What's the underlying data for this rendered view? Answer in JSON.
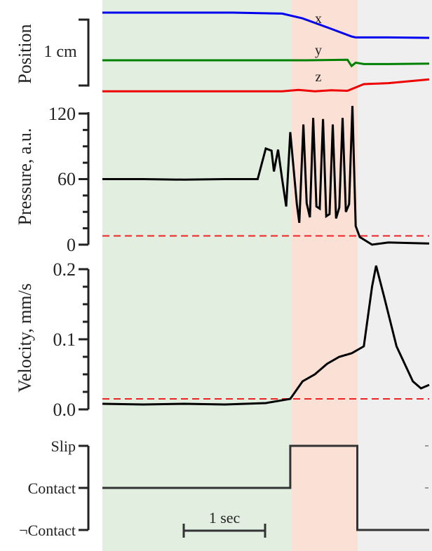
{
  "chart_data": [
    {
      "type": "line",
      "panel": "position",
      "ylabel": "Position",
      "scale_bar": "1 cm",
      "colors": {
        "x": "#0000ee",
        "y": "#008000",
        "z": "#ee0000"
      },
      "series": [
        {
          "name": "x",
          "x": [
            0,
            1.6,
            2.2,
            2.45,
            2.8,
            3.05,
            3.1,
            3.5,
            4.0
          ],
          "values": [
            1.0,
            1.0,
            0.98,
            0.88,
            0.66,
            0.5,
            0.48,
            0.48,
            0.47
          ]
        },
        {
          "name": "y",
          "x": [
            0,
            2.0,
            2.5,
            3.0,
            3.05,
            3.1,
            3.2,
            3.5,
            4.0
          ],
          "values": [
            0.0,
            0.0,
            0.0,
            0.01,
            -0.12,
            -0.05,
            -0.08,
            -0.08,
            -0.07
          ]
        },
        {
          "name": "z",
          "x": [
            0,
            2.2,
            2.4,
            2.6,
            2.8,
            3.0,
            3.2,
            3.5,
            4.0
          ],
          "values": [
            -0.65,
            -0.65,
            -0.62,
            -0.65,
            -0.63,
            -0.64,
            -0.5,
            -0.48,
            -0.4
          ]
        }
      ]
    },
    {
      "type": "line",
      "panel": "pressure",
      "ylabel": "Pressure, a.u.",
      "yticks": [
        "0",
        "60",
        "120"
      ],
      "ylim": [
        0,
        120
      ],
      "threshold": 8,
      "series": [
        {
          "name": "",
          "x": [
            0,
            0.5,
            1.0,
            1.5,
            1.9,
            2.0,
            2.07,
            2.1,
            2.15,
            2.2,
            2.25,
            2.3,
            2.38,
            2.41,
            2.46,
            2.5,
            2.54,
            2.58,
            2.62,
            2.66,
            2.7,
            2.74,
            2.78,
            2.82,
            2.86,
            2.9,
            2.94,
            2.98,
            3.02,
            3.06,
            3.1,
            3.15,
            3.3,
            3.5,
            4.0
          ],
          "values": [
            60,
            60,
            59.5,
            60,
            60,
            88,
            86,
            67,
            87,
            60,
            35,
            103,
            37,
            20,
            110,
            38,
            25,
            116,
            35,
            33,
            115,
            26,
            28,
            110,
            24,
            34,
            116,
            30,
            37,
            127,
            17,
            7,
            0,
            2,
            1
          ]
        }
      ]
    },
    {
      "type": "line",
      "panel": "velocity",
      "ylabel": "Velocity, mm/s",
      "yticks": [
        "0.0",
        "0.1",
        "0.2"
      ],
      "ylim": [
        0,
        0.2
      ],
      "threshold": 0.015,
      "series": [
        {
          "name": "",
          "x": [
            0,
            0.5,
            1.0,
            1.5,
            2.0,
            2.3,
            2.45,
            2.6,
            2.75,
            2.9,
            3.05,
            3.2,
            3.3,
            3.35,
            3.45,
            3.6,
            3.8,
            3.9,
            4.0
          ],
          "values": [
            0.008,
            0.007,
            0.008,
            0.007,
            0.009,
            0.015,
            0.04,
            0.05,
            0.065,
            0.075,
            0.08,
            0.09,
            0.175,
            0.205,
            0.16,
            0.09,
            0.04,
            0.03,
            0.035
          ]
        }
      ]
    },
    {
      "type": "line",
      "panel": "state",
      "yticks": [
        "Slip",
        "Contact",
        "¬Contact"
      ],
      "scale_bar": "1 sec",
      "series": [
        {
          "name": "",
          "x": [
            0,
            2.3,
            2.3,
            3.12,
            3.12,
            4.0
          ],
          "values": [
            1,
            1,
            2,
            2,
            0,
            0
          ]
        }
      ]
    }
  ]
}
